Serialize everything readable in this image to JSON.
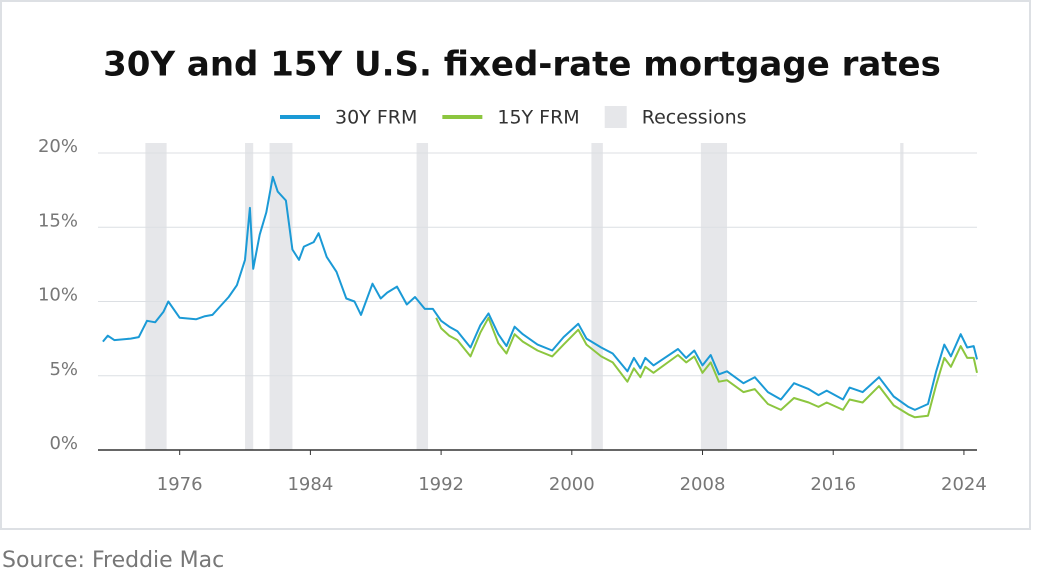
{
  "chart_data": {
    "type": "line",
    "title": "30Y and 15Y U.S. fixed-rate mortgage rates",
    "source": "Source: Freddie Mac",
    "xlim": [
      1971,
      2024.8
    ],
    "xticks": [
      1976,
      1984,
      1992,
      2000,
      2008,
      2016,
      2024
    ],
    "ylim": [
      0,
      20
    ],
    "yticks": [
      {
        "value": 0,
        "label": "0%"
      },
      {
        "value": 5,
        "label": "5%"
      },
      {
        "value": 10,
        "label": "10%"
      },
      {
        "value": 15,
        "label": "15%"
      },
      {
        "value": 20,
        "label": "20%"
      }
    ],
    "grid": true,
    "recessions_label": "Recessions",
    "recessions_color": "#e6e7ea",
    "recessions": [
      [
        1973.9,
        1975.2
      ],
      [
        1980.0,
        1980.5
      ],
      [
        1981.5,
        1982.9
      ],
      [
        1990.5,
        1991.2
      ],
      [
        2001.2,
        2001.9
      ],
      [
        2007.9,
        2009.5
      ],
      [
        2020.1,
        2020.3
      ]
    ],
    "series": [
      {
        "name": "30Y FRM",
        "color": "#1b9ad6",
        "x": [
          1971.3,
          1971.6,
          1972,
          1973,
          1973.5,
          1974,
          1974.5,
          1975,
          1975.3,
          1976,
          1977,
          1977.5,
          1978,
          1978.5,
          1979,
          1979.5,
          1980.0,
          1980.3,
          1980.5,
          1980.9,
          1981.3,
          1981.7,
          1982.0,
          1982.5,
          1982.9,
          1983.3,
          1983.6,
          1984.2,
          1984.5,
          1985.0,
          1985.6,
          1986.2,
          1986.7,
          1987.1,
          1987.8,
          1988.3,
          1988.7,
          1989.3,
          1989.9,
          1990.4,
          1991.0,
          1991.5,
          1992.0,
          1992.5,
          1993.0,
          1993.8,
          1994.4,
          1994.9,
          1995.5,
          1996.0,
          1996.5,
          1997.0,
          1997.9,
          1998.8,
          1999.5,
          2000.4,
          2000.9,
          2001.8,
          2002.5,
          2003.4,
          2003.8,
          2004.2,
          2004.5,
          2005.0,
          2006.5,
          2007.0,
          2007.5,
          2008.0,
          2008.5,
          2009.0,
          2009.5,
          2010.5,
          2011.2,
          2012.0,
          2012.8,
          2013.6,
          2014.5,
          2015.1,
          2015.6,
          2016.6,
          2017.0,
          2017.8,
          2018.8,
          2019.7,
          2020.6,
          2021.0,
          2021.8,
          2022.3,
          2022.8,
          2023.2,
          2023.8,
          2024.2,
          2024.6,
          2024.8
        ],
        "values": [
          7.3,
          7.7,
          7.4,
          7.5,
          7.6,
          8.7,
          8.6,
          9.3,
          10.0,
          8.9,
          8.8,
          9.0,
          9.1,
          9.7,
          10.3,
          11.1,
          12.8,
          16.3,
          12.2,
          14.5,
          16.0,
          18.4,
          17.4,
          16.8,
          13.5,
          12.8,
          13.7,
          14.0,
          14.6,
          13.0,
          12.0,
          10.2,
          10.0,
          9.1,
          11.2,
          10.2,
          10.6,
          11.0,
          9.8,
          10.3,
          9.5,
          9.5,
          8.7,
          8.3,
          8.0,
          6.9,
          8.4,
          9.2,
          7.8,
          7.0,
          8.3,
          7.8,
          7.1,
          6.7,
          7.6,
          8.5,
          7.5,
          6.9,
          6.5,
          5.3,
          6.2,
          5.5,
          6.2,
          5.7,
          6.8,
          6.2,
          6.7,
          5.7,
          6.4,
          5.1,
          5.3,
          4.5,
          4.9,
          3.9,
          3.4,
          4.5,
          4.1,
          3.7,
          4.0,
          3.4,
          4.2,
          3.9,
          4.9,
          3.6,
          2.9,
          2.7,
          3.1,
          5.3,
          7.1,
          6.3,
          7.8,
          6.9,
          7.0,
          6.1
        ]
      },
      {
        "name": "15Y FRM",
        "color": "#8cc63f",
        "x": [
          1991.7,
          1992.0,
          1992.5,
          1993.0,
          1993.8,
          1994.4,
          1994.9,
          1995.5,
          1996.0,
          1996.5,
          1997.0,
          1997.9,
          1998.8,
          1999.5,
          2000.4,
          2000.9,
          2001.8,
          2002.5,
          2003.4,
          2003.8,
          2004.2,
          2004.5,
          2005.0,
          2006.5,
          2007.0,
          2007.5,
          2008.0,
          2008.5,
          2009.0,
          2009.5,
          2010.5,
          2011.2,
          2012.0,
          2012.8,
          2013.6,
          2014.5,
          2015.1,
          2015.6,
          2016.6,
          2017.0,
          2017.8,
          2018.8,
          2019.7,
          2020.6,
          2021.0,
          2021.8,
          2022.3,
          2022.8,
          2023.2,
          2023.8,
          2024.2,
          2024.6,
          2024.8
        ],
        "values": [
          8.9,
          8.2,
          7.7,
          7.4,
          6.3,
          7.9,
          8.9,
          7.2,
          6.5,
          7.8,
          7.3,
          6.7,
          6.3,
          7.1,
          8.1,
          7.1,
          6.3,
          5.9,
          4.6,
          5.5,
          4.9,
          5.6,
          5.2,
          6.4,
          5.9,
          6.3,
          5.2,
          5.9,
          4.6,
          4.7,
          3.9,
          4.1,
          3.1,
          2.7,
          3.5,
          3.2,
          2.9,
          3.2,
          2.7,
          3.4,
          3.2,
          4.3,
          3.0,
          2.4,
          2.2,
          2.3,
          4.4,
          6.2,
          5.6,
          7.0,
          6.2,
          6.2,
          5.2
        ]
      }
    ]
  }
}
